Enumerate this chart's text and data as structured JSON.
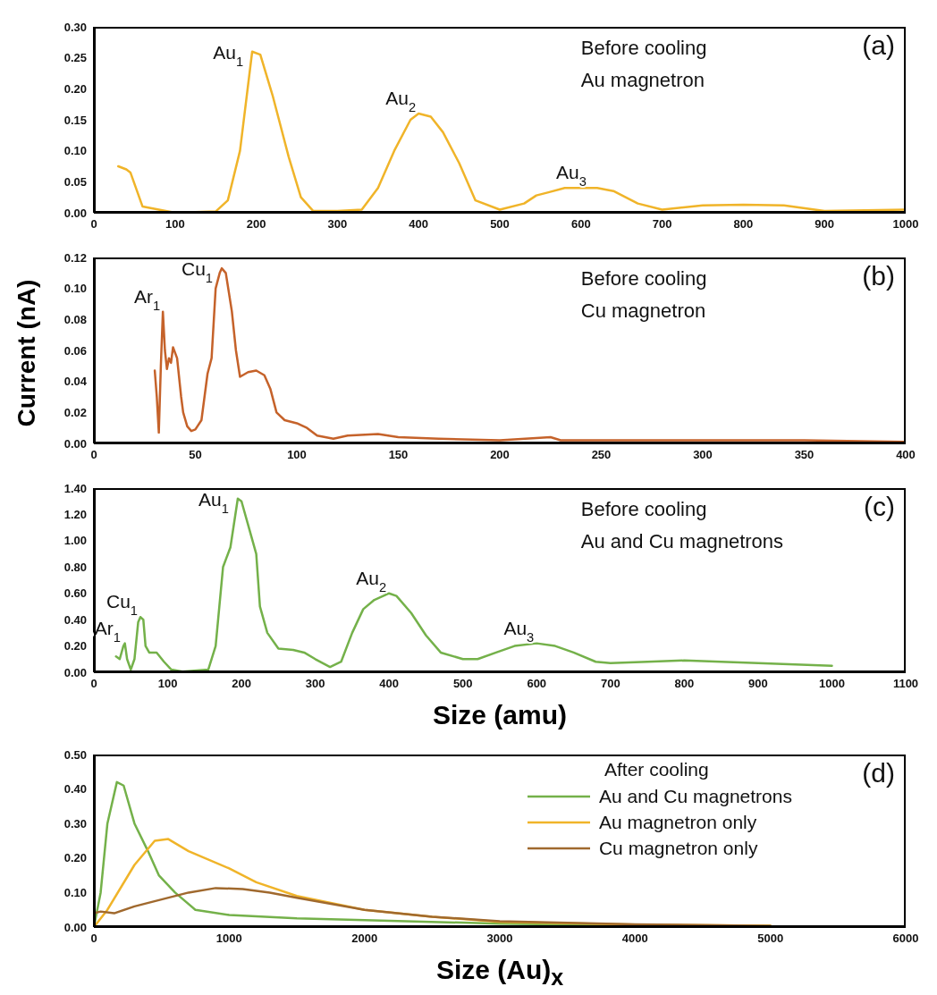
{
  "chart_data": [
    {
      "type": "line",
      "xlim": [
        0,
        1000
      ],
      "xticks": [
        0,
        100,
        200,
        300,
        400,
        500,
        600,
        700,
        800,
        900,
        1000
      ],
      "ylim": [
        0,
        0.3
      ],
      "yticks": [
        {
          "value": 0,
          "label": "0.00"
        },
        {
          "value": 0.05,
          "label": "0.05"
        },
        {
          "value": 0.1,
          "label": "0.10"
        },
        {
          "value": 0.15,
          "label": "0.15"
        },
        {
          "value": 0.2,
          "label": "0.20"
        },
        {
          "value": 0.25,
          "label": "0.25"
        },
        {
          "value": 0.3,
          "label": "0.30"
        }
      ],
      "series": [
        {
          "color": "#f0b429",
          "x": [
            30,
            40,
            45,
            60,
            80,
            100,
            150,
            165,
            180,
            195,
            205,
            220,
            240,
            255,
            270,
            300,
            330,
            350,
            370,
            390,
            400,
            415,
            430,
            450,
            470,
            500,
            530,
            545,
            560,
            580,
            620,
            640,
            670,
            700,
            750,
            800,
            850,
            860,
            900,
            1000
          ],
          "values": [
            0.075,
            0.07,
            0.065,
            0.01,
            0.005,
            0,
            0.002,
            0.02,
            0.1,
            0.26,
            0.255,
            0.19,
            0.09,
            0.025,
            0.003,
            0.003,
            0.005,
            0.04,
            0.1,
            0.15,
            0.16,
            0.155,
            0.13,
            0.08,
            0.02,
            0.005,
            0.015,
            0.028,
            0.033,
            0.04,
            0.04,
            0.035,
            0.015,
            0.005,
            0.012,
            0.013,
            0.012,
            0.01,
            0.003,
            0.005
          ]
        }
      ],
      "annotations": [
        "Before cooling",
        "Au magnetron",
        "(a)",
        {
          "text": "Au$_{1}$",
          "x": 195,
          "y": 0.26
        },
        {
          "text": "Au$_{2}$",
          "x": 400,
          "y": 0.16
        },
        {
          "text": "Au$_{3}$",
          "x": 610,
          "y": 0.04
        }
      ]
    },
    {
      "type": "line",
      "xlim": [
        0,
        400
      ],
      "xticks": [
        0,
        50,
        100,
        150,
        200,
        250,
        300,
        350,
        400
      ],
      "ylim": [
        0,
        0.12
      ],
      "yticks": [
        {
          "value": 0,
          "label": "0.00"
        },
        {
          "value": 0.02,
          "label": "0.02"
        },
        {
          "value": 0.04,
          "label": "0.04"
        },
        {
          "value": 0.06,
          "label": "0.06"
        },
        {
          "value": 0.08,
          "label": "0.08"
        },
        {
          "value": 0.1,
          "label": "0.10"
        },
        {
          "value": 0.12,
          "label": "0.12"
        }
      ],
      "ylabel": "Current (nA)",
      "series": [
        {
          "color": "#c5622a",
          "x": [
            30,
            31,
            32,
            33,
            34,
            35,
            36,
            37,
            38,
            39,
            41,
            43,
            44,
            46,
            48,
            50,
            53,
            56,
            58,
            60,
            62,
            63,
            65,
            68,
            70,
            72,
            76,
            80,
            84,
            87,
            90,
            94,
            100,
            105,
            110,
            118,
            125,
            140,
            150,
            170,
            200,
            225,
            230,
            260,
            300,
            350,
            400
          ],
          "values": [
            0.047,
            0.03,
            0.007,
            0.05,
            0.085,
            0.06,
            0.048,
            0.055,
            0.052,
            0.062,
            0.055,
            0.03,
            0.02,
            0.011,
            0.008,
            0.009,
            0.015,
            0.045,
            0.055,
            0.1,
            0.11,
            0.113,
            0.11,
            0.085,
            0.06,
            0.043,
            0.046,
            0.047,
            0.044,
            0.035,
            0.02,
            0.015,
            0.013,
            0.01,
            0.005,
            0.003,
            0.005,
            0.006,
            0.004,
            0.003,
            0.002,
            0.004,
            0.002,
            0.002,
            0.002,
            0.002,
            0.001
          ]
        }
      ],
      "annotations": [
        "Before cooling",
        "Cu magnetron",
        "(b)",
        {
          "text": "Ar$_{1}$",
          "x": 34,
          "y": 0.085
        },
        {
          "text": "Cu$_{1}$",
          "x": 63,
          "y": 0.113
        }
      ]
    },
    {
      "type": "line",
      "xlim": [
        0,
        1100
      ],
      "xticks": [
        0,
        100,
        200,
        300,
        400,
        500,
        600,
        700,
        800,
        900,
        1000,
        1100
      ],
      "ylim": [
        0,
        1.4
      ],
      "yticks": [
        {
          "value": 0,
          "label": "0.00"
        },
        {
          "value": 0.2,
          "label": "0.20"
        },
        {
          "value": 0.4,
          "label": "0.40"
        },
        {
          "value": 0.6,
          "label": "0.60"
        },
        {
          "value": 0.8,
          "label": "0.80"
        },
        {
          "value": 1,
          "label": "1.00"
        },
        {
          "value": 1.2,
          "label": "1.20"
        },
        {
          "value": 1.4,
          "label": "1.40"
        }
      ],
      "xlabel": "Size (amu)",
      "series": [
        {
          "color": "#74b14a",
          "x": [
            30,
            35,
            40,
            42,
            45,
            50,
            55,
            60,
            63,
            67,
            70,
            75,
            85,
            95,
            105,
            120,
            155,
            165,
            175,
            185,
            195,
            200,
            210,
            220,
            225,
            235,
            250,
            270,
            285,
            300,
            320,
            335,
            350,
            365,
            380,
            400,
            410,
            430,
            450,
            470,
            500,
            520,
            545,
            570,
            600,
            625,
            650,
            680,
            700,
            750,
            800,
            850,
            900,
            950,
            1000
          ],
          "values": [
            0.12,
            0.1,
            0.2,
            0.22,
            0.1,
            0.02,
            0.1,
            0.38,
            0.42,
            0.4,
            0.2,
            0.15,
            0.15,
            0.08,
            0.02,
            0.005,
            0.02,
            0.2,
            0.8,
            0.95,
            1.32,
            1.3,
            1.1,
            0.9,
            0.5,
            0.3,
            0.18,
            0.17,
            0.15,
            0.1,
            0.04,
            0.08,
            0.3,
            0.48,
            0.55,
            0.6,
            0.58,
            0.45,
            0.28,
            0.15,
            0.1,
            0.1,
            0.15,
            0.2,
            0.22,
            0.2,
            0.15,
            0.08,
            0.07,
            0.08,
            0.09,
            0.08,
            0.07,
            0.06,
            0.05
          ]
        }
      ],
      "annotations": [
        "Before cooling",
        "Au and Cu magnetrons",
        "(c)",
        {
          "text": "Ar$_{1}$",
          "x": 40,
          "y": 0.22
        },
        {
          "text": "Cu$_{1}$",
          "x": 63,
          "y": 0.42
        },
        {
          "text": "Au$_{1}$",
          "x": 195,
          "y": 1.32
        },
        {
          "text": "Au$_{2}$",
          "x": 400,
          "y": 0.6
        },
        {
          "text": "Au$_{3}$",
          "x": 600,
          "y": 0.22
        }
      ]
    },
    {
      "type": "line",
      "xlim": [
        0,
        6000
      ],
      "xticks": [
        0,
        1000,
        2000,
        3000,
        4000,
        5000,
        6000
      ],
      "ylim": [
        0,
        0.5
      ],
      "yticks": [
        {
          "value": 0,
          "label": "0.00"
        },
        {
          "value": 0.1,
          "label": "0.10"
        },
        {
          "value": 0.2,
          "label": "0.20"
        },
        {
          "value": 0.3,
          "label": "0.30"
        },
        {
          "value": 0.4,
          "label": "0.40"
        },
        {
          "value": 0.5,
          "label": "0.50"
        }
      ],
      "xlabel": "Size (Au)$_{x}$",
      "legend": "top right",
      "legend_title": "After cooling",
      "series": [
        {
          "name": "Au and Cu magnetrons",
          "color": "#74b14a",
          "x": [
            0,
            50,
            100,
            170,
            220,
            300,
            400,
            480,
            600,
            750,
            1000,
            1500,
            2000,
            3000,
            4000,
            5000
          ],
          "values": [
            0,
            0.1,
            0.3,
            0.42,
            0.41,
            0.3,
            0.22,
            0.15,
            0.1,
            0.05,
            0.035,
            0.025,
            0.02,
            0.01,
            0.005,
            0.003
          ]
        },
        {
          "name": "Au magnetron only",
          "color": "#f0b429",
          "x": [
            0,
            100,
            300,
            450,
            550,
            700,
            1000,
            1200,
            1500,
            2000,
            2500,
            3000,
            4000,
            5000
          ],
          "values": [
            0,
            0.05,
            0.18,
            0.25,
            0.255,
            0.22,
            0.17,
            0.13,
            0.09,
            0.05,
            0.03,
            0.015,
            0.007,
            0.004
          ]
        },
        {
          "name": "Cu magnetron only",
          "color": "#a0692e",
          "x": [
            0,
            50,
            150,
            300,
            500,
            700,
            900,
            1100,
            1300,
            1500,
            2000,
            2500,
            3000,
            4000,
            5000
          ],
          "values": [
            0.04,
            0.045,
            0.04,
            0.06,
            0.08,
            0.1,
            0.113,
            0.11,
            0.1,
            0.085,
            0.05,
            0.03,
            0.017,
            0.008,
            0.003
          ]
        }
      ],
      "annotations": [
        "(d)"
      ]
    }
  ]
}
